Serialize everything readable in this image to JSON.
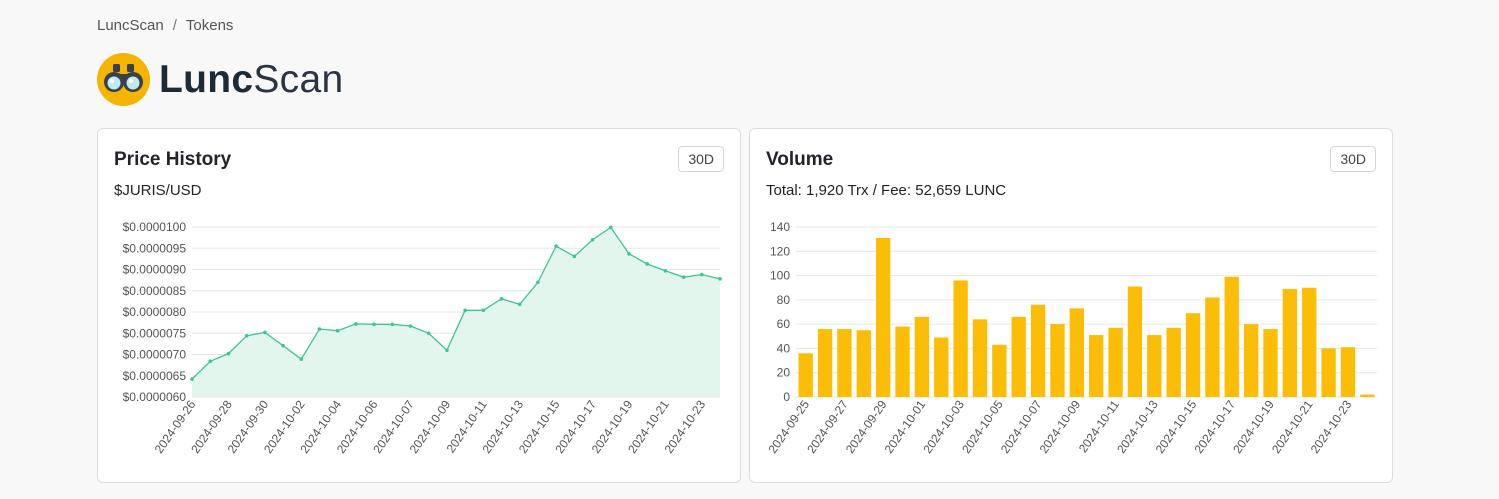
{
  "breadcrumb": {
    "home": "LuncScan",
    "separator": "/",
    "current": "Tokens"
  },
  "brand": {
    "bold": "Lunc",
    "light": "Scan"
  },
  "colors": {
    "price_line": "#3cc596",
    "price_fill": "#e3f6ee",
    "volume_bar": "#fbbd05",
    "logo": "#f4b400"
  },
  "price": {
    "title": "Price History",
    "range": "30D",
    "subtitle": "$JURIS/USD"
  },
  "volume": {
    "title": "Volume",
    "range": "30D",
    "summary": "Total: 1,920 Trx / Fee: 52,659 LUNC"
  },
  "chart_data": [
    {
      "type": "area",
      "title": "Price History",
      "ylabel": "$JURIS/USD",
      "ylim": [
        6e-06,
        1e-05
      ],
      "yticks": [
        "$0.0000060",
        "$0.0000065",
        "$0.0000070",
        "$0.0000075",
        "$0.0000080",
        "$0.0000085",
        "$0.0000090",
        "$0.0000095",
        "$0.0000100"
      ],
      "xtick_labels": [
        "2024-09-26",
        "2024-09-28",
        "2024-09-30",
        "2024-10-02",
        "2024-10-04",
        "2024-10-06",
        "2024-10-07",
        "2024-10-09",
        "2024-10-11",
        "2024-10-13",
        "2024-10-15",
        "2024-10-17",
        "2024-10-19",
        "2024-10-21",
        "2024-10-23"
      ],
      "values": [
        6.42e-06,
        6.84e-06,
        7.02e-06,
        7.44e-06,
        7.52e-06,
        7.21e-06,
        6.89e-06,
        7.6e-06,
        7.56e-06,
        7.72e-06,
        7.71e-06,
        7.71e-06,
        7.67e-06,
        7.5e-06,
        7.1e-06,
        8.04e-06,
        8.04e-06,
        8.31e-06,
        8.18e-06,
        8.7e-06,
        9.55e-06,
        9.31e-06,
        9.7e-06,
        9.99e-06,
        9.37e-06,
        9.13e-06,
        8.97e-06,
        8.82e-06,
        8.88e-06,
        8.78e-06
      ]
    },
    {
      "type": "bar",
      "title": "Volume",
      "ylim": [
        0,
        140
      ],
      "yticks": [
        "0",
        "20",
        "40",
        "60",
        "80",
        "100",
        "120",
        "140"
      ],
      "xtick_labels": [
        "2024-09-25",
        "2024-09-27",
        "2024-09-29",
        "2024-10-01",
        "2024-10-03",
        "2024-10-05",
        "2024-10-07",
        "2024-10-09",
        "2024-10-11",
        "2024-10-13",
        "2024-10-15",
        "2024-10-17",
        "2024-10-19",
        "2024-10-21",
        "2024-10-23"
      ],
      "values": [
        36,
        56,
        56,
        55,
        131,
        58,
        66,
        49,
        96,
        64,
        43,
        66,
        76,
        60,
        73,
        51,
        57,
        91,
        51,
        57,
        69,
        82,
        99,
        60,
        56,
        89,
        90,
        40,
        41,
        2
      ]
    }
  ]
}
